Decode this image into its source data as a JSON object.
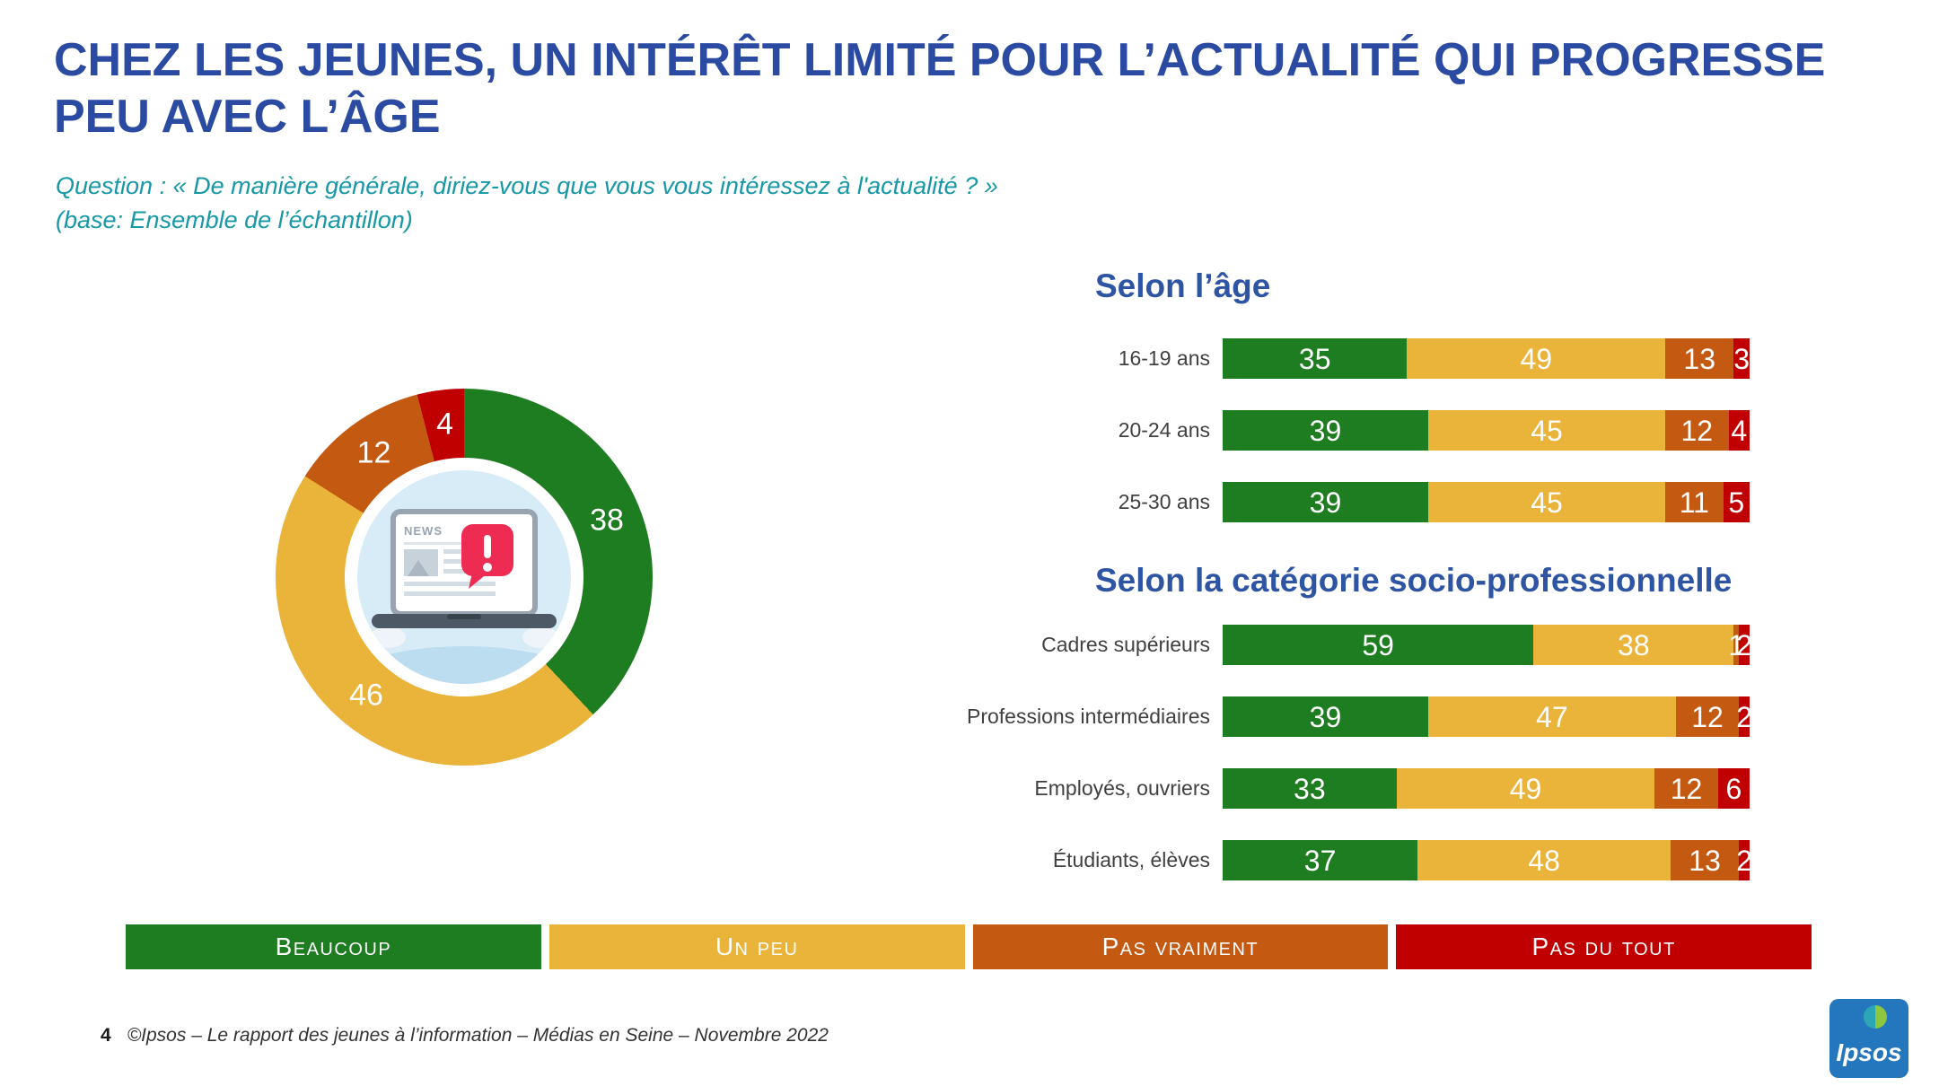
{
  "slide": {
    "title": "CHEZ LES JEUNES, UN INTÉRÊT LIMITÉ POUR L’ACTUALITÉ QUI PROGRESSE PEU AVEC L’ÂGE",
    "question_line1": "Question : « De manière générale, diriez-vous que vous vous intéressez à l'actualité ? »",
    "question_line2": "(base: Ensemble de l’échantillon)"
  },
  "colors": {
    "beaucoup_green": "#1e7d20",
    "un_peu_yellow": "#eab339",
    "pas_vraiment_orange": "#c45911",
    "pas_du_tout_red": "#c00000",
    "title_blue": "#2b4aa2",
    "heading_blue": "#2e55a3",
    "question_teal": "#1798a6",
    "series": [
      "#1e7d20",
      "#eab339",
      "#c45911",
      "#c00000"
    ]
  },
  "legend": {
    "items": [
      {
        "label": "Beaucoup"
      },
      {
        "label": "Un peu"
      },
      {
        "label": "Pas vraiment"
      },
      {
        "label": "Pas du tout"
      }
    ]
  },
  "chart_data": [
    {
      "type": "pie",
      "subtype": "donut",
      "categories": [
        "Beaucoup",
        "Un peu",
        "Pas vraiment",
        "Pas du tout"
      ],
      "values": [
        38,
        46,
        12,
        4
      ],
      "center_label": "NEWS"
    },
    {
      "type": "bar",
      "stacked": true,
      "orientation": "horizontal",
      "title": "Selon l’âge",
      "categories": [
        "16-19 ans",
        "20-24 ans",
        "25-30 ans"
      ],
      "series": [
        {
          "name": "Beaucoup",
          "values": [
            35,
            39,
            39
          ]
        },
        {
          "name": "Un peu",
          "values": [
            49,
            45,
            45
          ]
        },
        {
          "name": "Pas vraiment",
          "values": [
            13,
            12,
            11
          ]
        },
        {
          "name": "Pas du tout",
          "values": [
            3,
            4,
            5
          ]
        }
      ],
      "xlim": [
        0,
        100
      ]
    },
    {
      "type": "bar",
      "stacked": true,
      "orientation": "horizontal",
      "title": "Selon la catégorie socio-professionnelle",
      "categories": [
        "Cadres supérieurs",
        "Professions intermédiaires",
        "Employés, ouvriers",
        "Étudiants, élèves"
      ],
      "series": [
        {
          "name": "Beaucoup",
          "values": [
            59,
            39,
            33,
            37
          ]
        },
        {
          "name": "Un peu",
          "values": [
            38,
            47,
            49,
            48
          ]
        },
        {
          "name": "Pas vraiment",
          "values": [
            1,
            12,
            12,
            13
          ]
        },
        {
          "name": "Pas du tout",
          "values": [
            2,
            2,
            6,
            2
          ]
        }
      ],
      "xlim": [
        0,
        100
      ]
    }
  ],
  "footer": {
    "page_number": "4",
    "text": "©Ipsos – Le rapport des jeunes à l’information – Médias en Seine – Novembre 2022"
  },
  "logo": {
    "text": "Ipsos"
  }
}
